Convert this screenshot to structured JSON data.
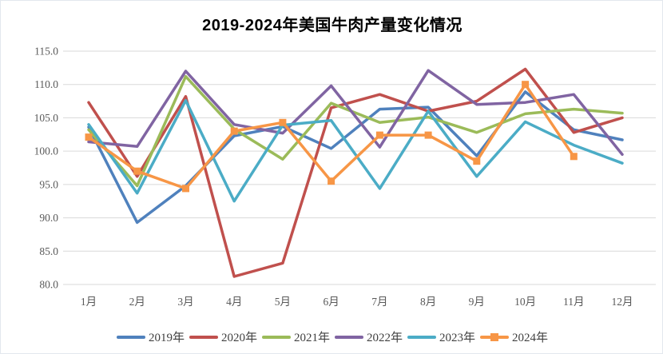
{
  "title": "2019-2024年美国牛肉产量变化情况",
  "axis": {
    "label_color": "#595959",
    "gridline_color": "#d9d9d9"
  },
  "chart_data": {
    "type": "line",
    "title": "2019-2024年美国牛肉产量变化情况",
    "categories": [
      "1月",
      "2月",
      "3月",
      "4月",
      "5月",
      "6月",
      "7月",
      "8月",
      "9月",
      "10月",
      "11月",
      "12月"
    ],
    "series": [
      {
        "name": "2019年",
        "color": "#4F81BD",
        "marker": "none",
        "values": [
          103.6,
          89.3,
          94.8,
          102.3,
          103.7,
          100.4,
          106.3,
          106.6,
          99.3,
          108.9,
          103.2,
          101.7
        ]
      },
      {
        "name": "2020年",
        "color": "#C0504D",
        "marker": "none",
        "values": [
          107.3,
          96.2,
          108.2,
          81.2,
          83.2,
          106.5,
          108.5,
          106.0,
          107.5,
          112.3,
          102.8,
          105.0
        ]
      },
      {
        "name": "2021年",
        "color": "#9BBB59",
        "marker": "none",
        "values": [
          103.2,
          94.8,
          111.2,
          103.3,
          98.8,
          107.2,
          104.3,
          105.1,
          102.8,
          105.6,
          106.3,
          105.7
        ]
      },
      {
        "name": "2022年",
        "color": "#8064A2",
        "marker": "none",
        "values": [
          101.4,
          100.7,
          112.0,
          104.0,
          102.7,
          109.8,
          100.6,
          112.1,
          107.0,
          107.3,
          108.5,
          99.5
        ]
      },
      {
        "name": "2023年",
        "color": "#4BACC6",
        "marker": "none",
        "values": [
          104.0,
          93.7,
          107.6,
          92.5,
          103.9,
          104.6,
          94.4,
          106.0,
          96.2,
          104.4,
          100.9,
          98.2
        ]
      },
      {
        "name": "2024年",
        "color": "#F79646",
        "marker": "square",
        "values": [
          102.1,
          97.0,
          94.4,
          103.0,
          104.3,
          95.5,
          102.4,
          102.4,
          98.5,
          110.0,
          99.2,
          null
        ]
      }
    ],
    "ylim": [
      80,
      115
    ],
    "ytick_step": 5,
    "grid": "horizontal",
    "legend_position": "bottom"
  }
}
